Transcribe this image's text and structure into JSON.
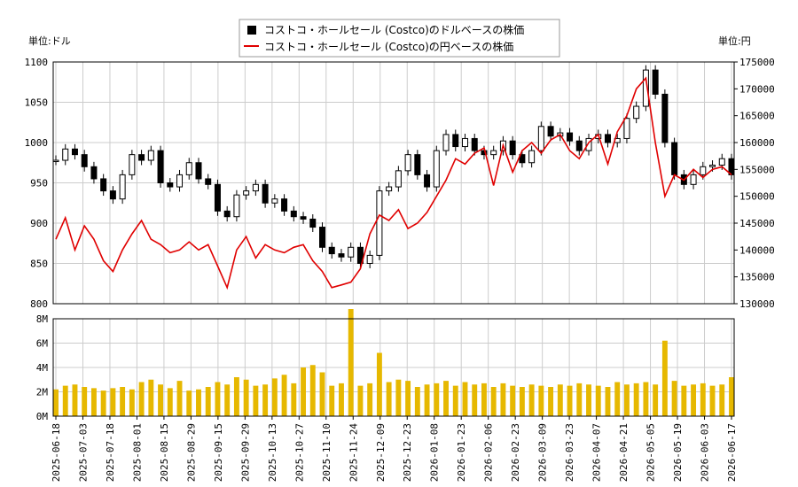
{
  "chart_data": [
    {
      "type": "candlestick",
      "legend": [
        {
          "label": "コストコ・ホールセール (Costco)のドルベースの株価",
          "color": "#000000"
        },
        {
          "label": "コストコ・ホールセール (Costco)の円ベースの株価",
          "color": "#e00000"
        }
      ],
      "left_unit": "単位:ドル",
      "right_unit": "単位:円",
      "ylim_left": [
        800,
        1100
      ],
      "ylim_right": [
        130000,
        175000
      ],
      "left_ticks": [
        "800",
        "850",
        "900",
        "950",
        "1000",
        "1050",
        "1100"
      ],
      "right_ticks": [
        "130000",
        "135000",
        "140000",
        "145000",
        "150000",
        "155000",
        "160000",
        "165000",
        "170000",
        "175000"
      ],
      "grid": true,
      "x_dates": [
        "2025-06-18",
        "2025-07-03",
        "2025-07-18",
        "2025-08-01",
        "2025-08-15",
        "2025-08-29",
        "2025-09-15",
        "2025-09-29",
        "2025-10-13",
        "2025-10-27",
        "2025-11-10",
        "2025-11-24",
        "2025-12-09",
        "2025-12-23",
        "2026-01-08",
        "2026-01-23",
        "2026-02-06",
        "2026-02-23",
        "2026-03-09",
        "2026-03-23",
        "2026-04-07",
        "2026-04-21",
        "2026-05-05",
        "2026-05-19",
        "2026-06-03",
        "2026-06-17"
      ],
      "usd_series": {
        "name": "ドルベース",
        "values": [
          978,
          992,
          985,
          970,
          955,
          940,
          930,
          960,
          985,
          978,
          990,
          950,
          945,
          960,
          975,
          955,
          948,
          915,
          908,
          935,
          940,
          948,
          925,
          930,
          915,
          908,
          905,
          895,
          870,
          862,
          858,
          870,
          850,
          860,
          940,
          945,
          965,
          985,
          960,
          945,
          990,
          1010,
          995,
          1005,
          990,
          985,
          990,
          1002,
          985,
          975,
          990,
          1020,
          1008,
          1012,
          1002,
          990,
          1005,
          1010,
          1000,
          1005,
          1030,
          1045,
          1090,
          1060,
          1000,
          960,
          948,
          960,
          970,
          972,
          980,
          960
        ]
      },
      "jpy_series": {
        "name": "円ベース",
        "values": [
          142000,
          146000,
          140000,
          144500,
          142000,
          138000,
          136000,
          140000,
          143000,
          145500,
          142000,
          141000,
          139500,
          140000,
          141500,
          140000,
          141000,
          137000,
          133000,
          140000,
          142500,
          138500,
          141000,
          140000,
          139500,
          140500,
          141000,
          138000,
          136000,
          133000,
          133500,
          134000,
          136500,
          143000,
          146500,
          145500,
          147500,
          144000,
          145000,
          147000,
          150000,
          153000,
          157000,
          156000,
          158000,
          159000,
          152000,
          159500,
          154500,
          158500,
          160000,
          158000,
          160500,
          161500,
          158500,
          157000,
          160000,
          161500,
          156000,
          162000,
          165000,
          170000,
          172000,
          160000,
          150000,
          154000,
          153000,
          155000,
          153500,
          155000,
          155500,
          154000
        ]
      },
      "volume": {
        "ylim": [
          0,
          8000000
        ],
        "ticks": [
          "0M",
          "2M",
          "4M",
          "6M",
          "8M"
        ],
        "values": [
          2.2,
          2.5,
          2.6,
          2.4,
          2.3,
          2.1,
          2.3,
          2.4,
          2.2,
          2.8,
          3.0,
          2.6,
          2.3,
          2.9,
          2.1,
          2.2,
          2.4,
          2.8,
          2.6,
          3.2,
          3.0,
          2.5,
          2.6,
          3.1,
          3.4,
          2.7,
          4.0,
          4.2,
          3.6,
          2.5,
          2.7,
          8.8,
          2.5,
          2.7,
          5.2,
          2.8,
          3.0,
          2.9,
          2.4,
          2.6,
          2.7,
          2.9,
          2.5,
          2.8,
          2.6,
          2.7,
          2.4,
          2.7,
          2.5,
          2.4,
          2.6,
          2.5,
          2.4,
          2.6,
          2.5,
          2.7,
          2.6,
          2.5,
          2.4,
          2.8,
          2.6,
          2.7,
          2.8,
          2.6,
          6.2,
          2.9,
          2.5,
          2.6,
          2.7,
          2.5,
          2.6,
          3.2
        ]
      }
    }
  ]
}
